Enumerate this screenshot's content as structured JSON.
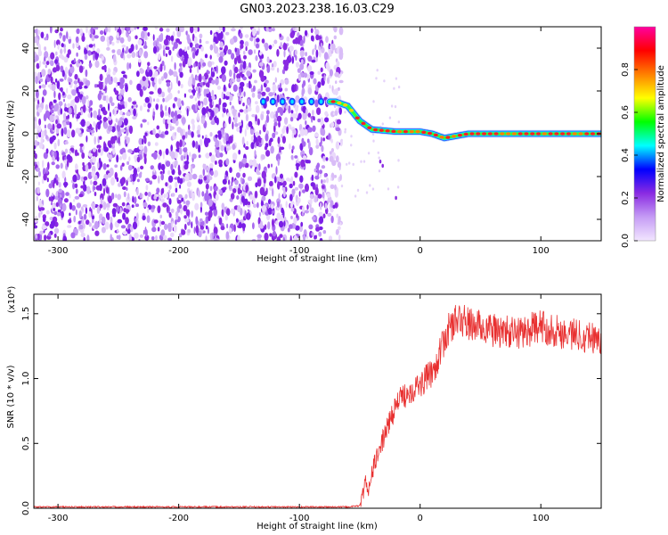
{
  "title": "GN03.2023.238.16.03.C29",
  "chart_data": [
    {
      "type": "heatmap",
      "xlabel": "Height of straight line (km)",
      "ylabel": "Frequency (Hz)",
      "xlim": [
        -320,
        150
      ],
      "ylim": [
        -50,
        50
      ],
      "x_ticks": [
        -300,
        -200,
        -100,
        0,
        100
      ],
      "y_ticks": [
        -40,
        -20,
        0,
        20,
        40
      ],
      "colorbar": {
        "label": "Normalized spectral amplitude",
        "range": [
          0,
          1
        ],
        "ticks": [
          0.0,
          0.2,
          0.4,
          0.6,
          0.8
        ],
        "colors": [
          "#f2e6ff",
          "#c59cf5",
          "#8a2be2",
          "#0000ff",
          "#00ffff",
          "#00ff00",
          "#ffff00",
          "#ff8000",
          "#ff0000",
          "#ff00a0"
        ]
      },
      "noise_region_x": [
        -320,
        -65
      ],
      "signal_path": [
        {
          "x": -130,
          "y": 15
        },
        {
          "x": -70,
          "y": 15
        },
        {
          "x": -60,
          "y": 13
        },
        {
          "x": -50,
          "y": 6
        },
        {
          "x": -40,
          "y": 2
        },
        {
          "x": -20,
          "y": 1
        },
        {
          "x": 0,
          "y": 1
        },
        {
          "x": 10,
          "y": 0
        },
        {
          "x": 20,
          "y": -2
        },
        {
          "x": 40,
          "y": 0
        },
        {
          "x": 150,
          "y": 0
        }
      ]
    },
    {
      "type": "line",
      "xlabel": "Height of straight line (km)",
      "ylabel": "SNR (10 * v/v)",
      "y_multiplier": "(x10⁴)",
      "xlim": [
        -320,
        150
      ],
      "ylim": [
        0,
        1.65
      ],
      "x_ticks": [
        -300,
        -200,
        -100,
        0,
        100
      ],
      "y_ticks": [
        0.0,
        0.5,
        1.0,
        1.5
      ],
      "series_color": "#e83030",
      "series": [
        {
          "x": [
            -320,
            -200,
            -100,
            -60,
            -50,
            -47,
            -45,
            -43,
            -40,
            -30,
            -20,
            -10,
            0,
            10,
            15,
            20,
            25,
            30,
            35,
            40,
            50,
            60,
            80,
            100,
            120,
            140,
            150
          ],
          "values": [
            0.01,
            0.01,
            0.01,
            0.01,
            0.02,
            0.12,
            0.22,
            0.1,
            0.28,
            0.55,
            0.8,
            0.9,
            0.95,
            1.05,
            1.15,
            1.3,
            1.4,
            1.45,
            1.45,
            1.42,
            1.4,
            1.37,
            1.35,
            1.4,
            1.35,
            1.33,
            1.3
          ]
        }
      ]
    }
  ]
}
